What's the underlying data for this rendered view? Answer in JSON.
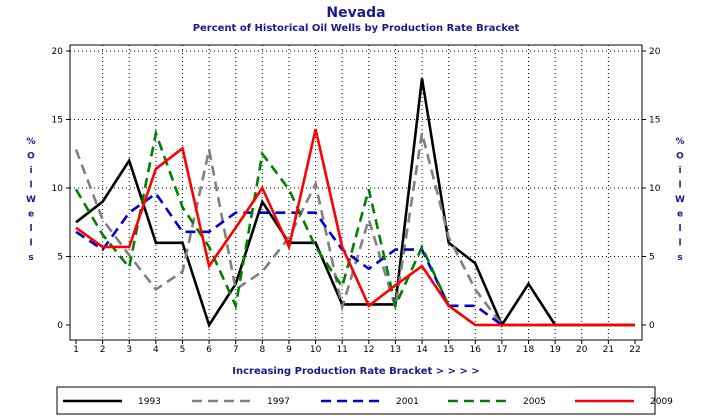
{
  "chart_data": {
    "type": "line",
    "title": "Nevada",
    "subtitle": "Percent of Historical Oil Wells by Production Rate Bracket",
    "xlabel": "Increasing Production Rate Bracket > > > >",
    "ylabel": "% O i l W e l l s",
    "x": [
      1,
      2,
      3,
      4,
      5,
      6,
      7,
      8,
      9,
      10,
      11,
      12,
      13,
      14,
      15,
      16,
      17,
      18,
      19,
      20,
      21,
      22
    ],
    "xlim": [
      1,
      22
    ],
    "ylim": [
      0,
      20
    ],
    "y_ticks": [
      0,
      5,
      10,
      15,
      20
    ],
    "grid": true,
    "legend_position": "bottom",
    "series": [
      {
        "name": "1993",
        "color": "#000000",
        "dash": "solid",
        "values": [
          7.5,
          9.0,
          12.0,
          6.0,
          6.0,
          0.0,
          3.0,
          9.0,
          6.0,
          6.0,
          1.5,
          1.5,
          1.5,
          18.0,
          6.0,
          4.5,
          0.0,
          3.0,
          0.0,
          0.0,
          0.0,
          0.0
        ]
      },
      {
        "name": "1997",
        "color": "#808080",
        "dash": "dashed",
        "values": [
          12.8,
          7.7,
          5.1,
          2.6,
          3.9,
          12.8,
          2.6,
          3.9,
          6.4,
          10.3,
          1.3,
          7.7,
          1.3,
          14.0,
          6.4,
          2.6,
          0.0,
          0.0,
          0.0,
          0.0,
          0.0,
          0.0
        ]
      },
      {
        "name": "2001",
        "color": "#0000cc",
        "dash": "dashed",
        "values": [
          6.8,
          5.5,
          8.2,
          9.6,
          6.8,
          6.8,
          8.2,
          8.2,
          8.2,
          8.2,
          5.5,
          4.1,
          5.5,
          5.5,
          1.4,
          1.4,
          0.0,
          0.0,
          0.0,
          0.0,
          0.0,
          0.0
        ]
      },
      {
        "name": "2005",
        "color": "#007f00",
        "dash": "dashed",
        "values": [
          9.9,
          6.6,
          4.2,
          14.0,
          8.6,
          5.7,
          1.4,
          12.5,
          9.9,
          5.7,
          2.8,
          9.9,
          1.4,
          5.7,
          1.4,
          0.0,
          0.0,
          0.0,
          0.0,
          0.0,
          0.0,
          0.0
        ]
      },
      {
        "name": "2009",
        "color": "#ff0000",
        "dash": "solid",
        "values": [
          7.1,
          5.7,
          5.7,
          11.4,
          12.9,
          4.3,
          7.1,
          10.0,
          5.7,
          14.3,
          5.7,
          1.4,
          2.9,
          4.3,
          1.4,
          0.0,
          0.0,
          0.0,
          0.0,
          0.0,
          0.0,
          0.0
        ]
      }
    ]
  }
}
